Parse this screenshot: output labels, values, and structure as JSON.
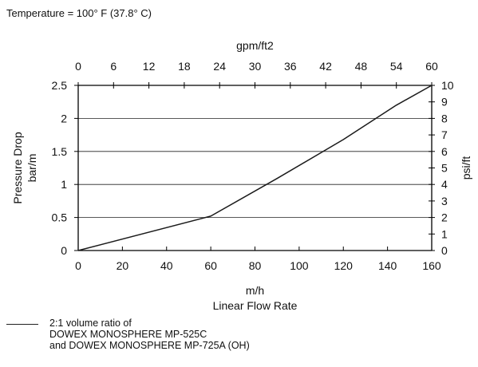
{
  "note": "Temperature = 100° F (37.8° C)",
  "chart_data": {
    "type": "line",
    "series": [
      {
        "name": "2:1 volume ratio of DOWEX MONOSPHERE MP-525C and DOWEX MONOSPHERE MP-725A (OH)",
        "x": [
          0,
          60,
          90,
          120,
          144,
          160
        ],
        "y": [
          0,
          0.52,
          1.09,
          1.68,
          2.2,
          2.5
        ]
      }
    ],
    "xlabel": "m/h",
    "xlabel2": "Linear Flow Rate",
    "xlim": [
      0,
      160
    ],
    "xticks": [
      "0",
      "20",
      "40",
      "60",
      "80",
      "100",
      "120",
      "140",
      "160"
    ],
    "ylabel": "Pressure Drop",
    "ylabel2": "bar/m",
    "ylim": [
      0,
      2.5
    ],
    "yticks": [
      "0",
      "0.5",
      "1",
      "1.5",
      "2",
      "2.5"
    ],
    "top_axis": {
      "label": "gpm/ft2",
      "lim": [
        0,
        60
      ],
      "ticks": [
        "0",
        "6",
        "12",
        "18",
        "24",
        "30",
        "36",
        "42",
        "48",
        "54",
        "60"
      ]
    },
    "right_axis": {
      "label": "psi/ft",
      "lim": [
        0,
        10
      ],
      "ticks": [
        "0",
        "1",
        "2",
        "3",
        "4",
        "5",
        "6",
        "7",
        "8",
        "9",
        "10"
      ]
    },
    "grid": "horizontal",
    "legend": {
      "position": "bottom-left",
      "lines": [
        "2:1 volume ratio of",
        "DOWEX MONOSPHERE MP-525C",
        "and DOWEX MONOSPHERE MP-725A (OH)"
      ]
    },
    "colors": {
      "line": "#1a1a1a",
      "grid": "#222222",
      "axis": "#000000"
    }
  }
}
